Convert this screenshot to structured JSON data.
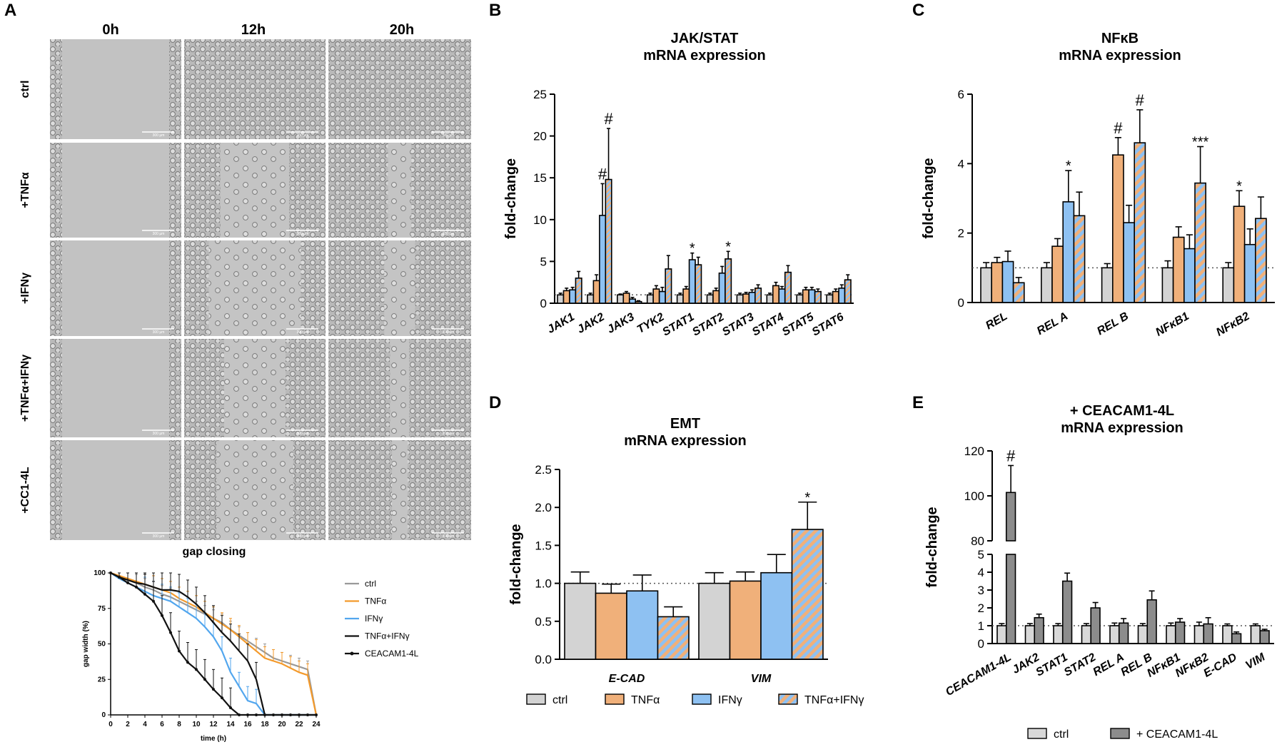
{
  "colors": {
    "ctrl": "#d3d3d3",
    "tnfa": "#f0b07a",
    "ifng": "#8ec1f2",
    "stripe_a": "#f0b07a",
    "stripe_b": "#8ec1f2",
    "cc1_dark": "#8c8c8c",
    "cc1_ctrl": "#d8d8d8",
    "line_ctrl": "#999999",
    "line_tnfa": "#f39a2c",
    "line_ifng": "#52a6ee",
    "line_tnfaifng": "#111111",
    "line_ceacam": "#111111"
  },
  "panel_a": {
    "letter": "A",
    "columns": [
      "0h",
      "12h",
      "20h"
    ],
    "rows": [
      "ctrl",
      "+TNFα",
      "+IFNγ",
      "+TNFα+IFNγ",
      "+CC1-4L"
    ],
    "scale_label": "300 µm",
    "subtitle": "gap closing"
  },
  "chart_data": [
    {
      "id": "gap",
      "type": "line",
      "title": "gap closing",
      "xlabel": "time (h)",
      "ylabel": "gap width (%)",
      "xlim": [
        0,
        24
      ],
      "ylim": [
        0,
        100
      ],
      "xticks": [
        "0",
        "2",
        "4",
        "6",
        "8",
        "10",
        "12",
        "14",
        "16",
        "18",
        "20",
        "22",
        "24"
      ],
      "yticks": [
        "0",
        "25",
        "50",
        "75",
        "100"
      ],
      "x": [
        0,
        1,
        2,
        3,
        4,
        5,
        6,
        7,
        8,
        9,
        10,
        11,
        12,
        13,
        14,
        15,
        16,
        17,
        18,
        19,
        20,
        21,
        22,
        23,
        24
      ],
      "series": [
        {
          "name": "ctrl",
          "key": "line_ctrl",
          "values": [
            100,
            97,
            95,
            93,
            90,
            88,
            85,
            83,
            80,
            77,
            74,
            71,
            68,
            65,
            60,
            56,
            52,
            48,
            44,
            40,
            38,
            36,
            34,
            32,
            0
          ]
        },
        {
          "name": "TNFα",
          "key": "line_tnfa",
          "values": [
            100,
            98,
            96,
            94,
            92,
            90,
            88,
            86,
            82,
            79,
            76,
            72,
            68,
            64,
            60,
            55,
            50,
            45,
            40,
            38,
            36,
            33,
            30,
            28,
            0
          ]
        },
        {
          "name": "IFNγ",
          "key": "line_ifng",
          "values": [
            100,
            96,
            93,
            90,
            87,
            84,
            82,
            80,
            76,
            72,
            68,
            62,
            55,
            45,
            30,
            20,
            10,
            8,
            0,
            0,
            0,
            0,
            0,
            0,
            0
          ]
        },
        {
          "name": "TNFα+IFNγ",
          "key": "line_tnfaifng",
          "values": [
            100,
            97,
            95,
            93,
            92,
            90,
            88,
            88,
            87,
            83,
            78,
            72,
            65,
            58,
            52,
            45,
            38,
            25,
            0,
            0,
            0,
            0,
            0,
            0,
            0
          ]
        },
        {
          "name": "CEACAM1-4L",
          "key": "line_ceacam",
          "values": [
            100,
            97,
            93,
            90,
            85,
            80,
            70,
            58,
            45,
            37,
            32,
            25,
            18,
            12,
            5,
            0,
            0,
            0,
            0,
            0,
            0,
            0,
            0,
            0,
            0
          ]
        }
      ],
      "legend": [
        "ctrl",
        "TNFα",
        "IFNγ",
        "TNFα+IFNγ",
        "CEACAM1-4L"
      ]
    },
    {
      "id": "B",
      "letter": "B",
      "type": "bar",
      "title": [
        "JAK/STAT",
        "mRNA expression"
      ],
      "ylabel": "fold-change",
      "ylim": [
        0,
        25
      ],
      "yticks": [
        "0",
        "5",
        "10",
        "15",
        "20",
        "25"
      ],
      "categories": [
        "JAK1",
        "JAK2",
        "JAK3",
        "TYK2",
        "STAT1",
        "STAT2",
        "STAT3",
        "STAT4",
        "STAT5",
        "STAT6"
      ],
      "series": [
        {
          "name": "ctrl",
          "values": [
            1,
            1,
            1,
            1,
            1,
            1,
            1,
            1,
            1,
            1
          ],
          "err": [
            0.2,
            0.2,
            0.1,
            0.2,
            0.2,
            0.2,
            0.2,
            0.2,
            0.2,
            0.2
          ]
        },
        {
          "name": "TNFα",
          "values": [
            1.5,
            2.7,
            1.2,
            1.7,
            1.7,
            1.5,
            1.1,
            2.1,
            1.6,
            1.4
          ],
          "err": [
            0.3,
            0.7,
            0.2,
            0.4,
            0.3,
            0.3,
            0.2,
            0.4,
            0.3,
            0.3
          ]
        },
        {
          "name": "IFNγ",
          "values": [
            1.6,
            10.5,
            0.5,
            1.4,
            5.2,
            3.6,
            1.3,
            1.7,
            1.6,
            1.8
          ],
          "err": [
            0.3,
            3.8,
            0.2,
            0.5,
            0.8,
            0.8,
            0.3,
            0.3,
            0.3,
            0.4
          ]
        },
        {
          "name": "TNFα+IFNγ",
          "values": [
            3.0,
            14.8,
            0.2,
            4.1,
            4.6,
            5.3,
            1.8,
            3.7,
            1.4,
            2.8
          ],
          "err": [
            0.8,
            6.1,
            0.1,
            1.6,
            0.9,
            0.9,
            0.4,
            0.8,
            0.3,
            0.6
          ]
        }
      ],
      "annotations": [
        {
          "cat": 1,
          "bar": 2,
          "text": "#"
        },
        {
          "cat": 1,
          "bar": 3,
          "text": "#"
        },
        {
          "cat": 4,
          "bar": 2,
          "text": "*"
        },
        {
          "cat": 5,
          "bar": 3,
          "text": "*"
        }
      ],
      "refline": 1
    },
    {
      "id": "C",
      "letter": "C",
      "type": "bar",
      "title": [
        "NFκB",
        "mRNA expression"
      ],
      "ylabel": "fold-change",
      "ylim": [
        0,
        6
      ],
      "yticks": [
        "0",
        "2",
        "4",
        "6"
      ],
      "categories": [
        "REL",
        "REL A",
        "REL B",
        "NFκB1",
        "NFκB2"
      ],
      "series": [
        {
          "name": "ctrl",
          "values": [
            1,
            1,
            1,
            1,
            1
          ],
          "err": [
            0.15,
            0.15,
            0.12,
            0.2,
            0.15
          ]
        },
        {
          "name": "TNFα",
          "values": [
            1.15,
            1.62,
            4.25,
            1.88,
            2.77
          ],
          "err": [
            0.15,
            0.22,
            0.5,
            0.3,
            0.45
          ]
        },
        {
          "name": "IFNγ",
          "values": [
            1.18,
            2.9,
            2.3,
            1.55,
            1.67
          ],
          "err": [
            0.3,
            0.9,
            0.5,
            0.4,
            0.45
          ]
        },
        {
          "name": "TNFα+IFNγ",
          "values": [
            0.57,
            2.5,
            4.6,
            3.44,
            2.42
          ],
          "err": [
            0.15,
            0.68,
            0.95,
            1.05,
            0.62
          ]
        }
      ],
      "annotations": [
        {
          "cat": 1,
          "bar": 2,
          "text": "*"
        },
        {
          "cat": 2,
          "bar": 1,
          "text": "#"
        },
        {
          "cat": 2,
          "bar": 3,
          "text": "#"
        },
        {
          "cat": 3,
          "bar": 3,
          "text": "***"
        },
        {
          "cat": 4,
          "bar": 1,
          "text": "*"
        }
      ],
      "refline": 1
    },
    {
      "id": "D",
      "letter": "D",
      "type": "bar",
      "title": [
        "EMT",
        "mRNA expression"
      ],
      "ylabel": "fold-change",
      "ylim": [
        0,
        2.5
      ],
      "yticks": [
        "0.0",
        "0.5",
        "1.0",
        "1.5",
        "2.0",
        "2.5"
      ],
      "categories": [
        "E-CAD",
        "VIM"
      ],
      "series": [
        {
          "name": "ctrl",
          "values": [
            1.0,
            1.0
          ],
          "err": [
            0.15,
            0.14
          ]
        },
        {
          "name": "TNFα",
          "values": [
            0.87,
            1.03
          ],
          "err": [
            0.12,
            0.12
          ]
        },
        {
          "name": "IFNγ",
          "values": [
            0.9,
            1.14
          ],
          "err": [
            0.21,
            0.24
          ]
        },
        {
          "name": "TNFα+IFNγ",
          "values": [
            0.56,
            1.71
          ],
          "err": [
            0.13,
            0.36
          ]
        }
      ],
      "annotations": [
        {
          "cat": 1,
          "bar": 3,
          "text": "*"
        }
      ],
      "legend": [
        "ctrl",
        "TNFα",
        "IFNγ",
        "TNFα+IFNγ"
      ],
      "refline": 1
    },
    {
      "id": "E",
      "letter": "E",
      "type": "bar",
      "title": [
        "+ CEACAM1-4L",
        "mRNA expression"
      ],
      "ylabel": "fold-change",
      "ylim_low": [
        0,
        5
      ],
      "ylim_high": [
        80,
        120
      ],
      "yticks_low": [
        "0",
        "1",
        "2",
        "3",
        "4",
        "5"
      ],
      "yticks_high": [
        "80",
        "100",
        "120"
      ],
      "categories": [
        "CEACAM1-4L",
        "JAK2",
        "STAT1",
        "STAT2",
        "REL A",
        "REL B",
        "NFκB1",
        "NFκB2",
        "E-CAD",
        "VIM"
      ],
      "series": [
        {
          "name": "ctrl",
          "values": [
            1,
            1,
            1,
            1,
            1,
            1,
            1,
            1,
            1,
            1
          ],
          "err": [
            0.12,
            0.12,
            0.12,
            0.12,
            0.15,
            0.12,
            0.15,
            0.2,
            0.1,
            0.1
          ]
        },
        {
          "name": "+ CEACAM1-4L",
          "values": [
            101.5,
            1.45,
            3.5,
            2.0,
            1.15,
            2.45,
            1.2,
            1.1,
            0.55,
            0.72
          ],
          "err": [
            12,
            0.2,
            0.45,
            0.3,
            0.25,
            0.5,
            0.2,
            0.35,
            0.1,
            0.08
          ]
        }
      ],
      "annotations": [
        {
          "cat": 0,
          "bar": 1,
          "text": "#"
        }
      ],
      "legend": [
        "ctrl",
        "+ CEACAM1-4L"
      ],
      "refline": 1
    }
  ]
}
